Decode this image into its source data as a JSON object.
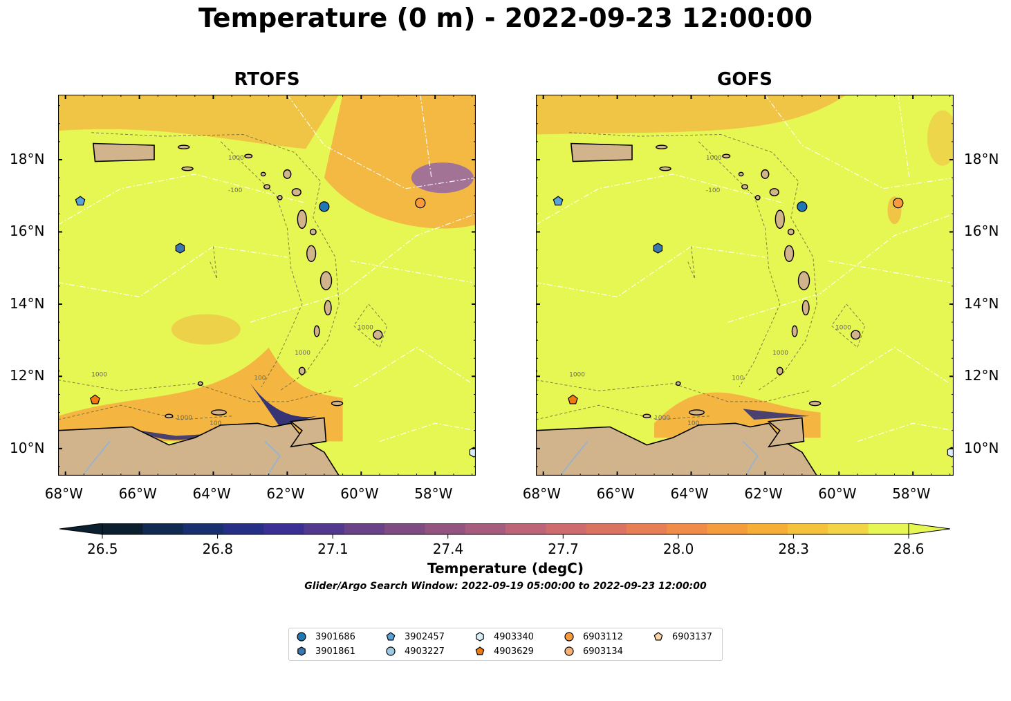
{
  "title": "Temperature (0 m) - 2022-09-23 12:00:00",
  "panels": [
    {
      "title": "RTOFS",
      "id": "rtofs"
    },
    {
      "title": "GOFS",
      "id": "gofs"
    }
  ],
  "map_extent": {
    "lon": [
      -68.2,
      -56.9
    ],
    "lat": [
      9.25,
      19.8
    ]
  },
  "lon_ticks": [
    "68°W",
    "66°W",
    "64°W",
    "62°W",
    "60°W",
    "58°W"
  ],
  "lat_ticks": [
    "18°N",
    "16°N",
    "14°N",
    "12°N",
    "10°N"
  ],
  "contour_labels": [
    "1000",
    "-100",
    "1000",
    "1000",
    "100",
    "1000",
    "100",
    "1000"
  ],
  "colorbar": {
    "label": "Temperature (degC)",
    "ticks": [
      "26.5",
      "26.8",
      "27.1",
      "27.4",
      "27.7",
      "28.0",
      "28.3",
      "28.6"
    ],
    "range": [
      26.5,
      28.6
    ],
    "extend": "both"
  },
  "search_window": "Glider/Argo Search Window: 2022-09-19 05:00:00 to 2022-09-23 12:00:00",
  "colors": {
    "land": "#d2b48c",
    "water_default": "#e6f754",
    "warm": "#f7a43c",
    "cool": "#2b2d78"
  },
  "legend": [
    {
      "label": "3901686",
      "marker": "circle",
      "color": "#1f77b4"
    },
    {
      "label": "3901861",
      "marker": "hexagon",
      "color": "#3b78b0"
    },
    {
      "label": "3902457",
      "marker": "pentagon",
      "color": "#5aa3d8"
    },
    {
      "label": "4903227",
      "marker": "circle",
      "color": "#9ecae1"
    },
    {
      "label": "4903340",
      "marker": "hexagon",
      "color": "#d8ecf8"
    },
    {
      "label": "4903629",
      "marker": "pentagon",
      "color": "#f07a10"
    },
    {
      "label": "6903112",
      "marker": "circle",
      "color": "#f99b3c"
    },
    {
      "label": "6903134",
      "marker": "circle",
      "color": "#f7b27a"
    },
    {
      "label": "6903137",
      "marker": "pentagon",
      "color": "#fcd5a8"
    }
  ],
  "floats": [
    {
      "id": "3901686",
      "lon": -61.0,
      "lat": 16.7
    },
    {
      "id": "6903112",
      "lon": -58.4,
      "lat": 16.8
    },
    {
      "id": "3902457",
      "lon": -67.6,
      "lat": 16.85
    },
    {
      "id": "3901861",
      "lon": -64.9,
      "lat": 15.55
    },
    {
      "id": "4903629",
      "lon": -67.2,
      "lat": 11.35
    },
    {
      "id": "4903340",
      "lon": -56.95,
      "lat": 9.9
    }
  ]
}
